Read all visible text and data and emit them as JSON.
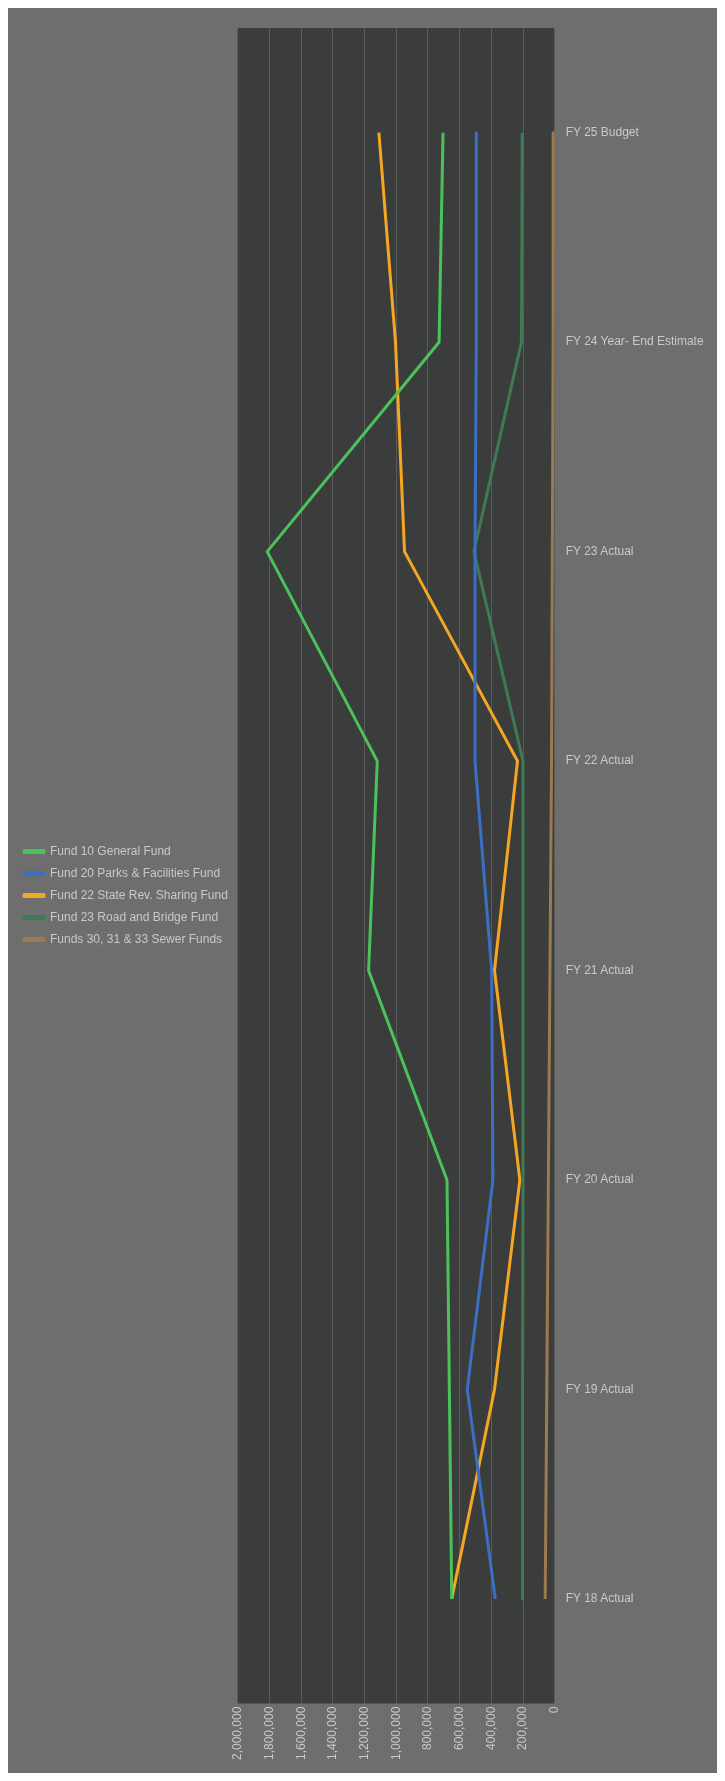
{
  "chart_data": {
    "type": "line",
    "orientation": "horizontal",
    "categories": [
      "FY 25 Budget",
      "FY 24 Year- End Estimate",
      "FY 23 Actual",
      "FY 22 Actual",
      "FY 21 Actual",
      "FY 20 Actual",
      "FY 19 Actual",
      "FY 18 Actual"
    ],
    "series": [
      {
        "name": "Fund 10 General Fund",
        "color": "#4cc25a",
        "values": [
          705000,
          730000,
          1815000,
          1120000,
          1175000,
          680000,
          665000,
          650000
        ]
      },
      {
        "name": "Fund 20 Parks & Facilities Fund",
        "color": "#3b6fc4",
        "values": [
          495000,
          495000,
          503000,
          503000,
          398000,
          390000,
          552000,
          375000
        ]
      },
      {
        "name": "Fund 22 State Rev. Sharing Fund",
        "color": "#f5a623",
        "values": [
          1110000,
          1005000,
          948000,
          235000,
          380000,
          220000,
          380000,
          650000
        ]
      },
      {
        "name": "Fund 23 Road and Bridge Fund",
        "color": "#3f7a52",
        "values": [
          205000,
          210000,
          510000,
          200000,
          200000,
          200000,
          203000,
          203000
        ]
      },
      {
        "name": "Funds 30, 31 & 33 Sewer Funds",
        "color": "#9c7a50",
        "values": [
          5000,
          10000,
          15000,
          20000,
          30000,
          40000,
          50000,
          60000
        ]
      }
    ],
    "xlim": [
      2000000,
      0
    ],
    "xticks": [
      0,
      {
        "value": 200000,
        "label": "200,000"
      },
      {
        "value": 400000,
        "label": "400,000"
      },
      {
        "value": 600000,
        "label": "600,000"
      },
      {
        "value": 800000,
        "label": "800,000"
      },
      {
        "value": 1000000,
        "label": "1,000,000"
      },
      {
        "value": 1200000,
        "label": "1,200,000"
      },
      {
        "value": 1400000,
        "label": "1,400,000"
      },
      {
        "value": 1600000,
        "label": "1,600,000"
      },
      {
        "value": 1800000,
        "label": "1,800,000"
      },
      {
        "value": 2000000,
        "label": "2,000,000"
      }
    ],
    "grid": "x",
    "legend": "left",
    "marker": "none",
    "line_style": "solid"
  }
}
